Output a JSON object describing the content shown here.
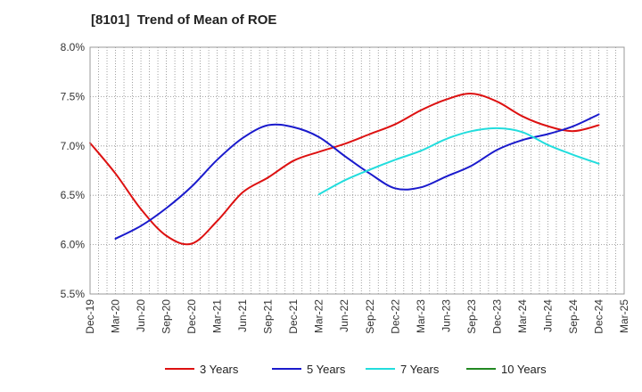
{
  "chart_data": {
    "type": "line",
    "title": "[8101]  Trend of Mean of ROE",
    "xlabel": "",
    "ylabel": "",
    "x_ticks": [
      "Dec-19",
      "Mar-20",
      "Jun-20",
      "Sep-20",
      "Dec-20",
      "Mar-21",
      "Jun-21",
      "Sep-21",
      "Dec-21",
      "Mar-22",
      "Jun-22",
      "Sep-22",
      "Dec-22",
      "Mar-23",
      "Jun-23",
      "Sep-23",
      "Dec-23",
      "Mar-24",
      "Jun-24",
      "Sep-24",
      "Dec-24",
      "Mar-25"
    ],
    "y_ticks": [
      "5.5%",
      "6.0%",
      "6.5%",
      "7.0%",
      "7.5%",
      "8.0%"
    ],
    "ylim": [
      5.5,
      8.0
    ],
    "grid": true,
    "legend_position": "bottom",
    "series": [
      {
        "name": "3 Years",
        "color": "#dd1111",
        "x": [
          "Dec-19",
          "Mar-20",
          "Jun-20",
          "Sep-20",
          "Dec-20",
          "Mar-21",
          "Jun-21",
          "Sep-21",
          "Dec-21",
          "Mar-22",
          "Jun-22",
          "Sep-22",
          "Dec-22",
          "Mar-23",
          "Jun-23",
          "Sep-23",
          "Dec-23",
          "Mar-24",
          "Jun-24",
          "Sep-24",
          "Dec-24"
        ],
        "values": [
          7.03,
          6.72,
          6.36,
          6.09,
          6.01,
          6.24,
          6.53,
          6.68,
          6.85,
          6.94,
          7.02,
          7.12,
          7.22,
          7.36,
          7.47,
          7.53,
          7.45,
          7.3,
          7.2,
          7.15,
          7.21
        ]
      },
      {
        "name": "5 Years",
        "color": "#1a1acc",
        "x": [
          "Mar-20",
          "Jun-20",
          "Sep-20",
          "Dec-20",
          "Mar-21",
          "Jun-21",
          "Sep-21",
          "Dec-21",
          "Mar-22",
          "Jun-22",
          "Sep-22",
          "Dec-22",
          "Mar-23",
          "Jun-23",
          "Sep-23",
          "Dec-23",
          "Mar-24",
          "Jun-24",
          "Sep-24",
          "Dec-24"
        ],
        "values": [
          6.06,
          6.19,
          6.37,
          6.59,
          6.86,
          7.08,
          7.21,
          7.19,
          7.09,
          6.9,
          6.72,
          6.57,
          6.58,
          6.69,
          6.8,
          6.96,
          7.06,
          7.12,
          7.2,
          7.32
        ]
      },
      {
        "name": "7 Years",
        "color": "#22dddd",
        "x": [
          "Mar-22",
          "Jun-22",
          "Sep-22",
          "Dec-22",
          "Mar-23",
          "Jun-23",
          "Sep-23",
          "Dec-23",
          "Mar-24",
          "Jun-24",
          "Sep-24",
          "Dec-24"
        ],
        "values": [
          6.51,
          6.65,
          6.76,
          6.86,
          6.95,
          7.07,
          7.15,
          7.18,
          7.14,
          7.01,
          6.91,
          6.82
        ]
      },
      {
        "name": "10 Years",
        "color": "#228822",
        "x": [],
        "values": []
      }
    ]
  }
}
